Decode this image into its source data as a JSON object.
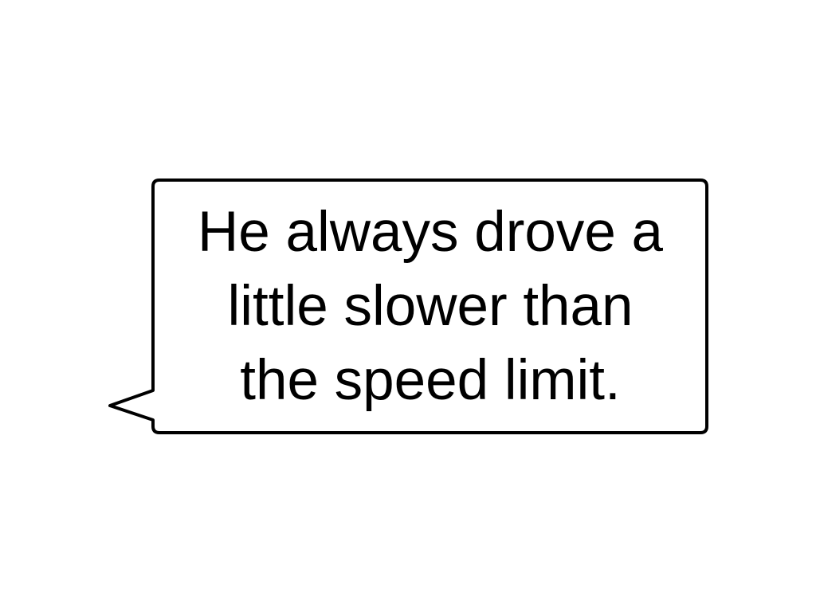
{
  "speech_bubble": {
    "lines": [
      "He always drove a",
      "little slower than",
      "the speed limit."
    ],
    "text_color": "#000000",
    "border_color": "#000000",
    "fill_color": "#ffffff"
  }
}
